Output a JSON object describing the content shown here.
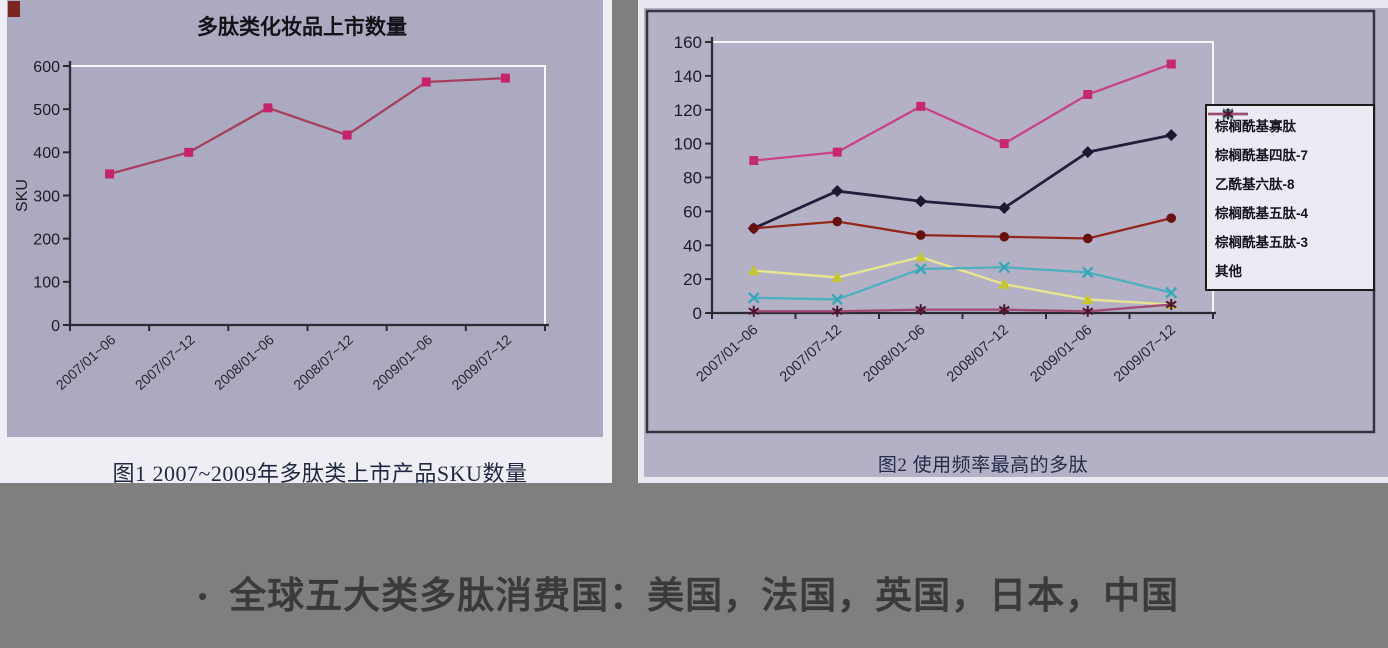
{
  "page_background": "#7f7f7f",
  "scan_colors": {
    "left_paper": "#efeef4",
    "left_plot_bg": "#acaac0",
    "right_plot_bg": "#b4b1c7",
    "legend_bg": "#eceaf2",
    "axis_color": "#2b2b33",
    "red_mark": "#7c2624"
  },
  "chart_data": [
    {
      "type": "line",
      "title": "多肽类化妆品上市数量",
      "caption": "图1 2007~2009年多肽类上市产品SKU数量",
      "ylabel": "SKU",
      "xlabel": "",
      "categories": [
        "2007/01~06",
        "2007/07~12",
        "2008/01~06",
        "2008/07~12",
        "2009/01~06",
        "2009/07~12"
      ],
      "series": [
        {
          "name": "SKU",
          "values": [
            350,
            400,
            503,
            440,
            563,
            572
          ],
          "color": "#a54060",
          "marker": "square",
          "marker_color": "#c5246a"
        }
      ],
      "ylim": [
        0,
        600
      ],
      "ytick_step": 100,
      "grid": false,
      "legend_position": "none"
    },
    {
      "type": "line",
      "title": "",
      "caption": "图2 使用频率最高的多肽",
      "ylabel": "",
      "xlabel": "",
      "categories": [
        "2007/01~06",
        "2007/07~12",
        "2008/01~06",
        "2008/07~12",
        "2009/01~06",
        "2009/07~12"
      ],
      "series": [
        {
          "name": "棕榈酰基寡肽",
          "values": [
            90,
            95,
            122,
            100,
            129,
            147
          ],
          "color": "#c84387",
          "marker": "square",
          "marker_color": "#c62a6e"
        },
        {
          "name": "棕榈酰基四肽-7",
          "values": [
            50,
            72,
            66,
            62,
            95,
            105
          ],
          "color": "#251d3d",
          "marker": "diamond",
          "marker_color": "#1d1732"
        },
        {
          "name": "乙酰基六肽-8",
          "values": [
            50,
            54,
            46,
            45,
            44,
            56
          ],
          "color": "#93271a",
          "marker": "circle",
          "marker_color": "#671111"
        },
        {
          "name": "棕榈酰基五肽-4",
          "values": [
            25,
            21,
            33,
            17,
            8,
            5
          ],
          "color": "#e9e68f",
          "marker": "triangle",
          "marker_color": "#c6c633"
        },
        {
          "name": "棕榈酰基五肽-3",
          "values": [
            9,
            8,
            26,
            27,
            24,
            12
          ],
          "color": "#4db0bf",
          "marker": "x",
          "marker_color": "#35a6b6"
        },
        {
          "name": "其他",
          "values": [
            1,
            1,
            2,
            2,
            1,
            5
          ],
          "color": "#a34a74",
          "marker": "star",
          "marker_color": "#4d1631"
        }
      ],
      "ylim": [
        0,
        160
      ],
      "ytick_step": 20,
      "grid": false,
      "legend_position": "right-box"
    }
  ],
  "bullet": {
    "marker": "•",
    "text": "全球五大类多肽消费国：美国，法国，英国，日本，中国"
  }
}
